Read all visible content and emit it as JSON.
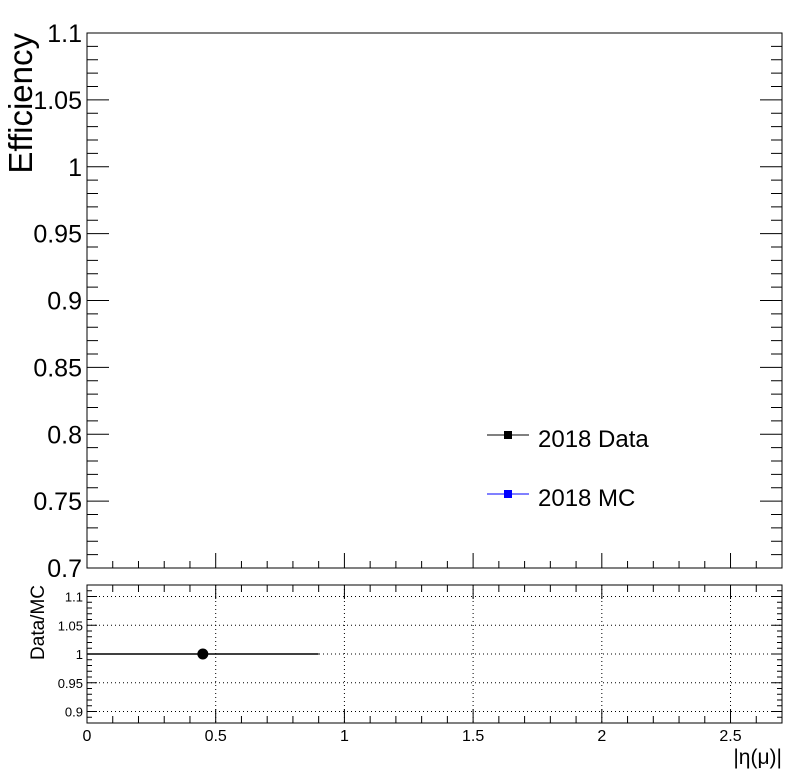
{
  "chart_data": [
    {
      "type": "scatter",
      "panel": "main",
      "ylabel": "Efficiency",
      "xlim": [
        0,
        2.7
      ],
      "ylim": [
        0.7,
        1.1
      ],
      "yticks": [
        "0.7",
        "0.75",
        "0.8",
        "0.85",
        "0.9",
        "0.95",
        "1",
        "1.05",
        "1.1"
      ],
      "grid": false,
      "legend": {
        "placement": "lower-right",
        "entries": [
          {
            "label": "2018 Data",
            "color": "#000000",
            "marker": "square"
          },
          {
            "label": "2018 MC",
            "color": "#0000ff",
            "marker": "square"
          }
        ]
      },
      "series": [
        {
          "name": "2018 Data",
          "color": "#000000",
          "points": []
        },
        {
          "name": "2018 MC",
          "color": "#0000ff",
          "points": []
        }
      ]
    },
    {
      "type": "scatter",
      "panel": "ratio",
      "ylabel": "Data/MC",
      "xlabel": "|η(μ)|",
      "xlim": [
        0,
        2.7
      ],
      "ylim": [
        0.88,
        1.12
      ],
      "xticks": [
        "0",
        "0.5",
        "1",
        "1.5",
        "2",
        "2.5"
      ],
      "yticks": [
        "0.9",
        "0.95",
        "1",
        "1.05",
        "1.1"
      ],
      "grid": true,
      "series": [
        {
          "color": "#000000",
          "points": [
            {
              "x": 0.45,
              "y": 1.0,
              "xerr_low": 0.45,
              "xerr_high": 0.45
            }
          ]
        }
      ]
    }
  ]
}
